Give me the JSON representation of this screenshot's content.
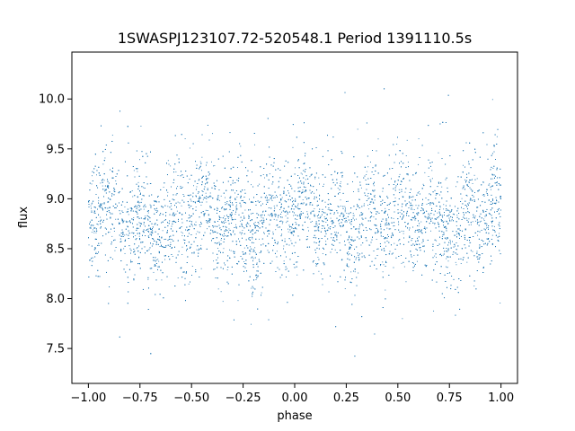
{
  "chart_data": {
    "type": "scatter",
    "title": "1SWASPJ123107.72-520548.1 Period 1391110.5s",
    "xlabel": "phase",
    "ylabel": "flux",
    "xlim": [
      -1.08,
      1.08
    ],
    "ylim": [
      7.15,
      10.47
    ],
    "xticks": [
      -1.0,
      -0.75,
      -0.5,
      -0.25,
      0.0,
      0.25,
      0.5,
      0.75,
      1.0
    ],
    "xtick_labels": [
      "−1.00",
      "−0.75",
      "−0.50",
      "−0.25",
      "0.00",
      "0.25",
      "0.50",
      "0.75",
      "1.00"
    ],
    "yticks": [
      7.5,
      8.0,
      8.5,
      9.0,
      9.5,
      10.0
    ],
    "ytick_labels": [
      "7.5",
      "8.0",
      "8.5",
      "9.0",
      "9.5",
      "10.0"
    ],
    "grid": false,
    "point_color": "#1f77b4",
    "series": [
      {
        "x_range": [
          -1.0,
          1.0
        ],
        "baseline_flux": 8.8,
        "flux_range": [
          7.3,
          10.3
        ],
        "points": [
          [
            -0.98,
            8.9
          ],
          [
            -0.95,
            9.3
          ],
          [
            -0.9,
            8.6
          ],
          [
            -0.85,
            9.1
          ],
          [
            -0.8,
            8.4
          ],
          [
            -0.75,
            8.8
          ],
          [
            -0.7,
            8.7
          ],
          [
            -0.65,
            8.5
          ],
          [
            -0.6,
            9.0
          ],
          [
            -0.55,
            8.3
          ],
          [
            -0.5,
            8.6
          ],
          [
            -0.45,
            8.9
          ],
          [
            -0.4,
            8.7
          ],
          [
            -0.35,
            8.5
          ],
          [
            -0.3,
            9.2
          ],
          [
            -0.25,
            8.8
          ],
          [
            -0.2,
            9.0
          ],
          [
            -0.15,
            8.7
          ],
          [
            -0.1,
            9.4
          ],
          [
            -0.05,
            8.9
          ],
          [
            0.0,
            8.8
          ],
          [
            0.05,
            8.6
          ],
          [
            0.1,
            9.1
          ],
          [
            0.15,
            8.7
          ],
          [
            0.2,
            8.9
          ],
          [
            0.25,
            8.5
          ],
          [
            0.3,
            8.8
          ],
          [
            0.35,
            8.6
          ],
          [
            0.4,
            8.9
          ],
          [
            0.45,
            8.3
          ],
          [
            0.5,
            8.6
          ],
          [
            0.55,
            9.0
          ],
          [
            0.6,
            8.7
          ],
          [
            0.65,
            8.9
          ],
          [
            0.7,
            8.6
          ],
          [
            0.75,
            8.8
          ],
          [
            0.8,
            9.0
          ],
          [
            0.85,
            9.2
          ],
          [
            0.9,
            8.8
          ],
          [
            0.95,
            9.3
          ],
          [
            0.98,
            8.9
          ]
        ]
      }
    ]
  }
}
